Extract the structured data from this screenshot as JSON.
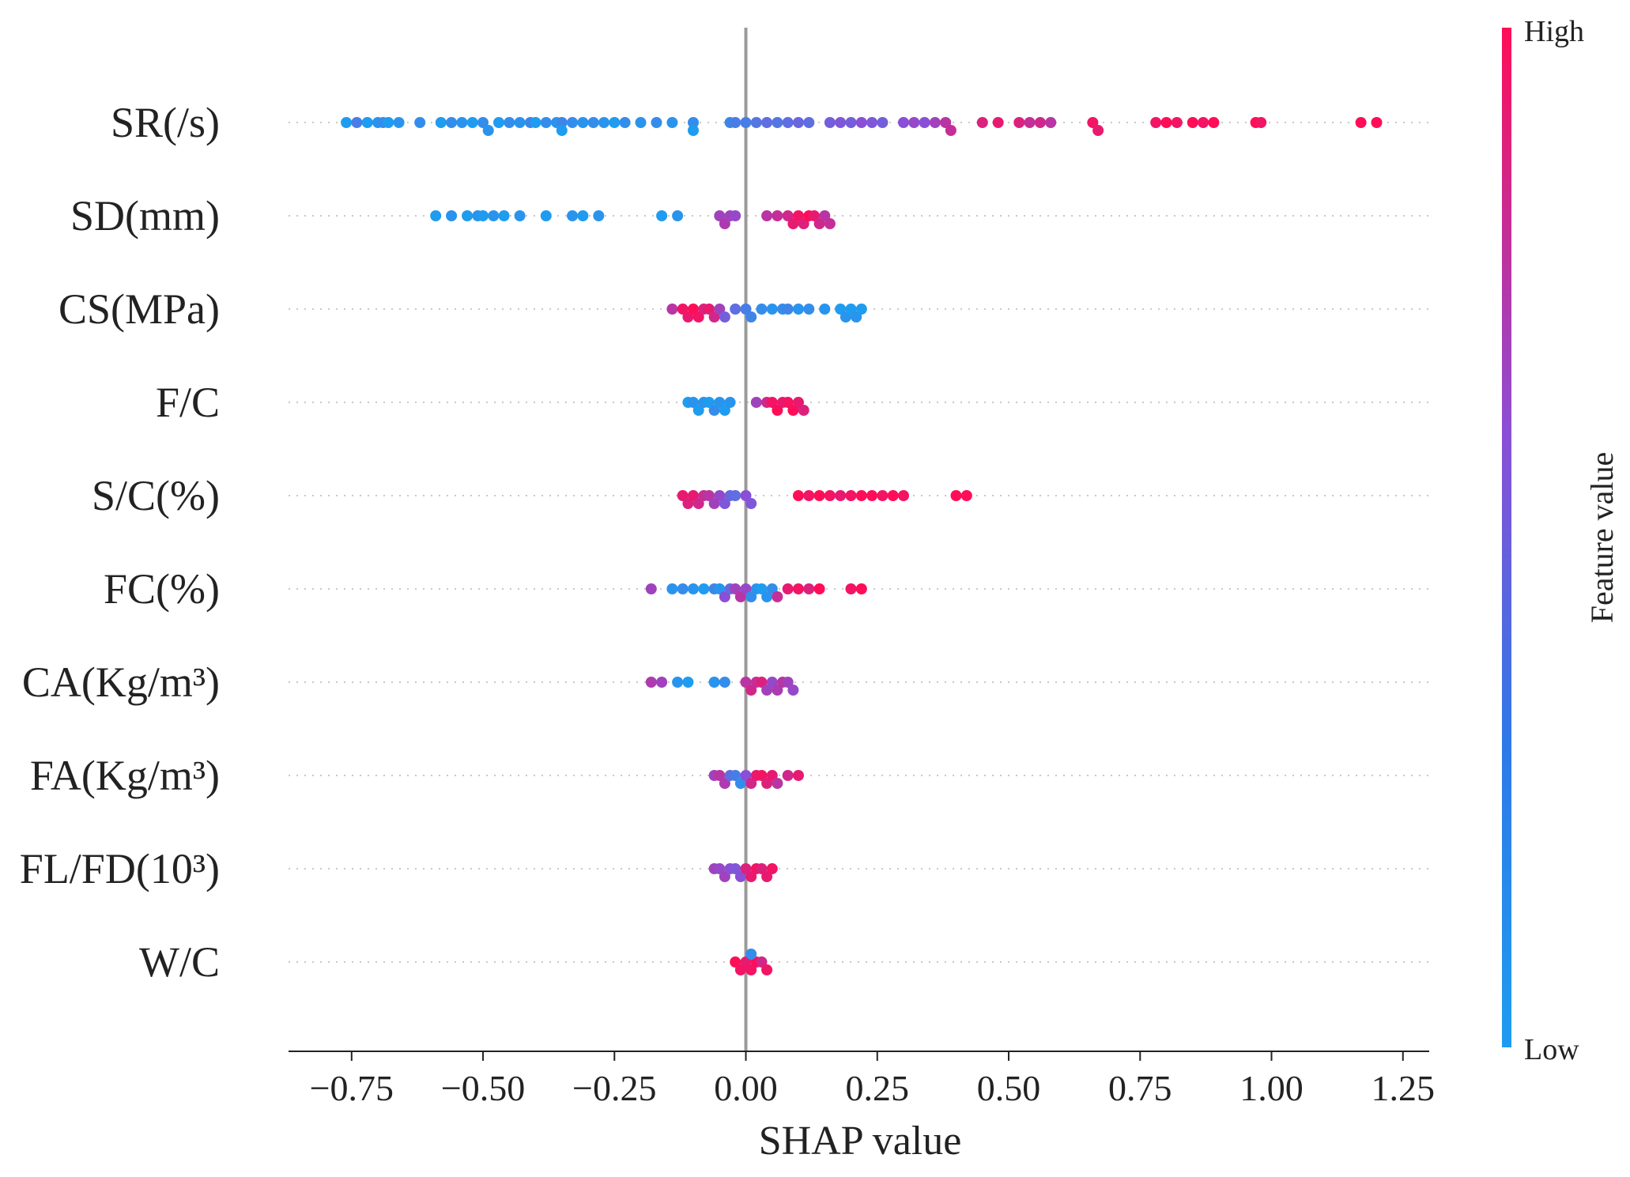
{
  "chart_data": {
    "type": "scatter",
    "subtype": "shap-beeswarm-summary",
    "xlabel": "SHAP value",
    "xlim": [
      -0.87,
      1.3
    ],
    "xticks": [
      -0.75,
      -0.5,
      -0.25,
      0.0,
      0.25,
      0.5,
      0.75,
      1.0,
      1.25
    ],
    "xtick_labels": [
      "−0.75",
      "−0.50",
      "−0.25",
      "0.00",
      "0.25",
      "0.50",
      "0.75",
      "1.00",
      "1.25"
    ],
    "zero_line": 0.0,
    "colorbar": {
      "label": "Feature value",
      "high_label": "High",
      "low_label": "Low",
      "low_color": "#1e9cf0",
      "mid_color": "#8a4fd6",
      "high_color": "#ff0d57"
    },
    "features": [
      {
        "name": "SR(/s)",
        "points": [
          [
            -0.76,
            0.0
          ],
          [
            -0.74,
            0.2
          ],
          [
            -0.72,
            0.0
          ],
          [
            -0.7,
            0.05
          ],
          [
            -0.69,
            0.1
          ],
          [
            -0.68,
            0.0
          ],
          [
            -0.66,
            0.05
          ],
          [
            -0.62,
            0.1
          ],
          [
            -0.58,
            0.0
          ],
          [
            -0.56,
            0.1
          ],
          [
            -0.54,
            0.05
          ],
          [
            -0.52,
            0.0
          ],
          [
            -0.5,
            0.1
          ],
          [
            -0.49,
            0.05
          ],
          [
            -0.47,
            0.0
          ],
          [
            -0.45,
            0.1
          ],
          [
            -0.43,
            0.05
          ],
          [
            -0.41,
            0.15
          ],
          [
            -0.4,
            0.0
          ],
          [
            -0.38,
            0.1
          ],
          [
            -0.36,
            0.05
          ],
          [
            -0.35,
            0.15
          ],
          [
            -0.35,
            0.0
          ],
          [
            -0.33,
            0.1
          ],
          [
            -0.31,
            0.05
          ],
          [
            -0.29,
            0.1
          ],
          [
            -0.27,
            0.05
          ],
          [
            -0.25,
            0.0
          ],
          [
            -0.23,
            0.1
          ],
          [
            -0.2,
            0.05
          ],
          [
            -0.17,
            0.1
          ],
          [
            -0.14,
            0.05
          ],
          [
            -0.1,
            0.1
          ],
          [
            -0.1,
            0.0
          ],
          [
            -0.03,
            0.15
          ],
          [
            -0.02,
            0.2
          ],
          [
            0.0,
            0.2
          ],
          [
            0.02,
            0.25
          ],
          [
            0.04,
            0.3
          ],
          [
            0.06,
            0.25
          ],
          [
            0.08,
            0.3
          ],
          [
            0.1,
            0.35
          ],
          [
            0.12,
            0.3
          ],
          [
            0.16,
            0.4
          ],
          [
            0.18,
            0.45
          ],
          [
            0.2,
            0.4
          ],
          [
            0.22,
            0.5
          ],
          [
            0.24,
            0.45
          ],
          [
            0.26,
            0.4
          ],
          [
            0.3,
            0.5
          ],
          [
            0.32,
            0.55
          ],
          [
            0.34,
            0.5
          ],
          [
            0.36,
            0.6
          ],
          [
            0.38,
            0.7
          ],
          [
            0.39,
            0.75
          ],
          [
            0.45,
            0.85
          ],
          [
            0.48,
            0.9
          ],
          [
            0.52,
            0.85
          ],
          [
            0.54,
            0.75
          ],
          [
            0.56,
            0.8
          ],
          [
            0.58,
            0.7
          ],
          [
            0.66,
            0.95
          ],
          [
            0.67,
            0.9
          ],
          [
            0.78,
            0.95
          ],
          [
            0.8,
            1.0
          ],
          [
            0.82,
            0.95
          ],
          [
            0.85,
            1.0
          ],
          [
            0.87,
            0.95
          ],
          [
            0.89,
            1.0
          ],
          [
            0.97,
            1.0
          ],
          [
            0.98,
            0.95
          ],
          [
            1.17,
            1.0
          ],
          [
            1.2,
            1.0
          ]
        ]
      },
      {
        "name": "SD(mm)",
        "points": [
          [
            -0.59,
            0.0
          ],
          [
            -0.56,
            0.05
          ],
          [
            -0.53,
            0.0
          ],
          [
            -0.51,
            0.05
          ],
          [
            -0.5,
            0.0
          ],
          [
            -0.48,
            0.05
          ],
          [
            -0.46,
            0.0
          ],
          [
            -0.43,
            0.05
          ],
          [
            -0.38,
            0.0
          ],
          [
            -0.33,
            0.05
          ],
          [
            -0.31,
            0.0
          ],
          [
            -0.28,
            0.05
          ],
          [
            -0.16,
            0.0
          ],
          [
            -0.13,
            0.05
          ],
          [
            -0.05,
            0.6
          ],
          [
            -0.04,
            0.65
          ],
          [
            -0.03,
            0.6
          ],
          [
            -0.02,
            0.55
          ],
          [
            0.04,
            0.7
          ],
          [
            0.06,
            0.75
          ],
          [
            0.08,
            0.8
          ],
          [
            0.09,
            0.9
          ],
          [
            0.1,
            0.95
          ],
          [
            0.11,
            0.85
          ],
          [
            0.12,
            1.0
          ],
          [
            0.13,
            0.9
          ],
          [
            0.14,
            0.8
          ],
          [
            0.15,
            0.7
          ],
          [
            0.16,
            0.75
          ]
        ]
      },
      {
        "name": "CS(MPa)",
        "points": [
          [
            -0.14,
            0.7
          ],
          [
            -0.12,
            0.95
          ],
          [
            -0.11,
            0.9
          ],
          [
            -0.1,
            1.0
          ],
          [
            -0.09,
            0.95
          ],
          [
            -0.08,
            0.85
          ],
          [
            -0.07,
            0.9
          ],
          [
            -0.06,
            0.8
          ],
          [
            -0.05,
            0.6
          ],
          [
            -0.04,
            0.4
          ],
          [
            -0.02,
            0.3
          ],
          [
            0.0,
            0.2
          ],
          [
            0.01,
            0.15
          ],
          [
            0.03,
            0.1
          ],
          [
            0.05,
            0.05
          ],
          [
            0.07,
            0.1
          ],
          [
            0.08,
            0.15
          ],
          [
            0.1,
            0.05
          ],
          [
            0.12,
            0.1
          ],
          [
            0.15,
            0.05
          ],
          [
            0.18,
            0.0
          ],
          [
            0.19,
            0.05
          ],
          [
            0.2,
            0.0
          ],
          [
            0.21,
            0.05
          ],
          [
            0.22,
            0.0
          ]
        ]
      },
      {
        "name": "F/C",
        "points": [
          [
            -0.11,
            0.0
          ],
          [
            -0.1,
            0.05
          ],
          [
            -0.09,
            0.0
          ],
          [
            -0.08,
            0.05
          ],
          [
            -0.07,
            0.0
          ],
          [
            -0.06,
            0.1
          ],
          [
            -0.05,
            0.05
          ],
          [
            -0.04,
            0.0
          ],
          [
            -0.03,
            0.05
          ],
          [
            0.02,
            0.6
          ],
          [
            0.04,
            0.8
          ],
          [
            0.05,
            0.95
          ],
          [
            0.06,
            1.0
          ],
          [
            0.07,
            0.9
          ],
          [
            0.08,
            0.95
          ],
          [
            0.09,
            1.0
          ],
          [
            0.1,
            0.9
          ],
          [
            0.11,
            0.85
          ]
        ]
      },
      {
        "name": "S/C(%)",
        "points": [
          [
            -0.12,
            0.9
          ],
          [
            -0.11,
            0.85
          ],
          [
            -0.1,
            0.9
          ],
          [
            -0.09,
            0.8
          ],
          [
            -0.08,
            0.75
          ],
          [
            -0.07,
            0.7
          ],
          [
            -0.06,
            0.6
          ],
          [
            -0.05,
            0.55
          ],
          [
            -0.04,
            0.45
          ],
          [
            -0.03,
            0.35
          ],
          [
            -0.02,
            0.3
          ],
          [
            0.0,
            0.5
          ],
          [
            0.01,
            0.45
          ],
          [
            0.1,
            1.0
          ],
          [
            0.12,
            0.95
          ],
          [
            0.14,
            1.0
          ],
          [
            0.16,
            0.95
          ],
          [
            0.18,
            0.9
          ],
          [
            0.2,
            0.95
          ],
          [
            0.22,
            1.0
          ],
          [
            0.24,
            1.0
          ],
          [
            0.26,
            0.95
          ],
          [
            0.28,
            1.0
          ],
          [
            0.3,
            0.95
          ],
          [
            0.4,
            1.0
          ],
          [
            0.42,
            1.0
          ]
        ]
      },
      {
        "name": "FC(%)",
        "points": [
          [
            -0.18,
            0.6
          ],
          [
            -0.14,
            0.05
          ],
          [
            -0.12,
            0.1
          ],
          [
            -0.1,
            0.05
          ],
          [
            -0.08,
            0.0
          ],
          [
            -0.06,
            0.15
          ],
          [
            -0.05,
            0.05
          ],
          [
            -0.04,
            0.5
          ],
          [
            -0.03,
            0.35
          ],
          [
            -0.02,
            0.6
          ],
          [
            -0.01,
            0.7
          ],
          [
            0.0,
            0.55
          ],
          [
            0.01,
            0.1
          ],
          [
            0.02,
            0.05
          ],
          [
            0.03,
            0.0
          ],
          [
            0.04,
            0.05
          ],
          [
            0.05,
            0.1
          ],
          [
            0.06,
            0.75
          ],
          [
            0.08,
            0.9
          ],
          [
            0.1,
            0.95
          ],
          [
            0.12,
            0.85
          ],
          [
            0.14,
            1.0
          ],
          [
            0.2,
            0.95
          ],
          [
            0.22,
            1.0
          ]
        ]
      },
      {
        "name": "CA(Kg/m³)",
        "points": [
          [
            -0.18,
            0.65
          ],
          [
            -0.16,
            0.6
          ],
          [
            -0.13,
            0.05
          ],
          [
            -0.11,
            0.0
          ],
          [
            -0.06,
            0.05
          ],
          [
            -0.04,
            0.1
          ],
          [
            0.0,
            0.7
          ],
          [
            0.01,
            0.8
          ],
          [
            0.02,
            0.75
          ],
          [
            0.03,
            0.85
          ],
          [
            0.04,
            0.6
          ],
          [
            0.05,
            0.55
          ],
          [
            0.06,
            0.65
          ],
          [
            0.07,
            0.7
          ],
          [
            0.08,
            0.6
          ],
          [
            0.09,
            0.55
          ]
        ]
      },
      {
        "name": "FA(Kg/m³)",
        "points": [
          [
            -0.06,
            0.6
          ],
          [
            -0.05,
            0.7
          ],
          [
            -0.04,
            0.65
          ],
          [
            -0.03,
            0.3
          ],
          [
            -0.02,
            0.2
          ],
          [
            -0.01,
            0.1
          ],
          [
            0.0,
            0.5
          ],
          [
            0.01,
            0.8
          ],
          [
            0.02,
            0.9
          ],
          [
            0.03,
            0.95
          ],
          [
            0.04,
            0.85
          ],
          [
            0.05,
            0.9
          ],
          [
            0.06,
            0.7
          ],
          [
            0.08,
            0.8
          ],
          [
            0.1,
            0.9
          ]
        ]
      },
      {
        "name": "FL/FD(10³)",
        "points": [
          [
            -0.06,
            0.6
          ],
          [
            -0.05,
            0.55
          ],
          [
            -0.04,
            0.6
          ],
          [
            -0.03,
            0.5
          ],
          [
            -0.02,
            0.45
          ],
          [
            -0.01,
            0.5
          ],
          [
            0.0,
            0.85
          ],
          [
            0.01,
            0.9
          ],
          [
            0.02,
            0.95
          ],
          [
            0.03,
            0.85
          ],
          [
            0.04,
            0.9
          ],
          [
            0.05,
            0.95
          ]
        ]
      },
      {
        "name": "W/C",
        "points": [
          [
            -0.02,
            1.0
          ],
          [
            -0.01,
            0.95
          ],
          [
            0.0,
            0.9
          ],
          [
            0.01,
            0.95
          ],
          [
            0.02,
            1.0
          ],
          [
            0.03,
            0.8
          ],
          [
            0.04,
            0.95
          ],
          [
            0.01,
            0.1
          ]
        ]
      }
    ]
  }
}
